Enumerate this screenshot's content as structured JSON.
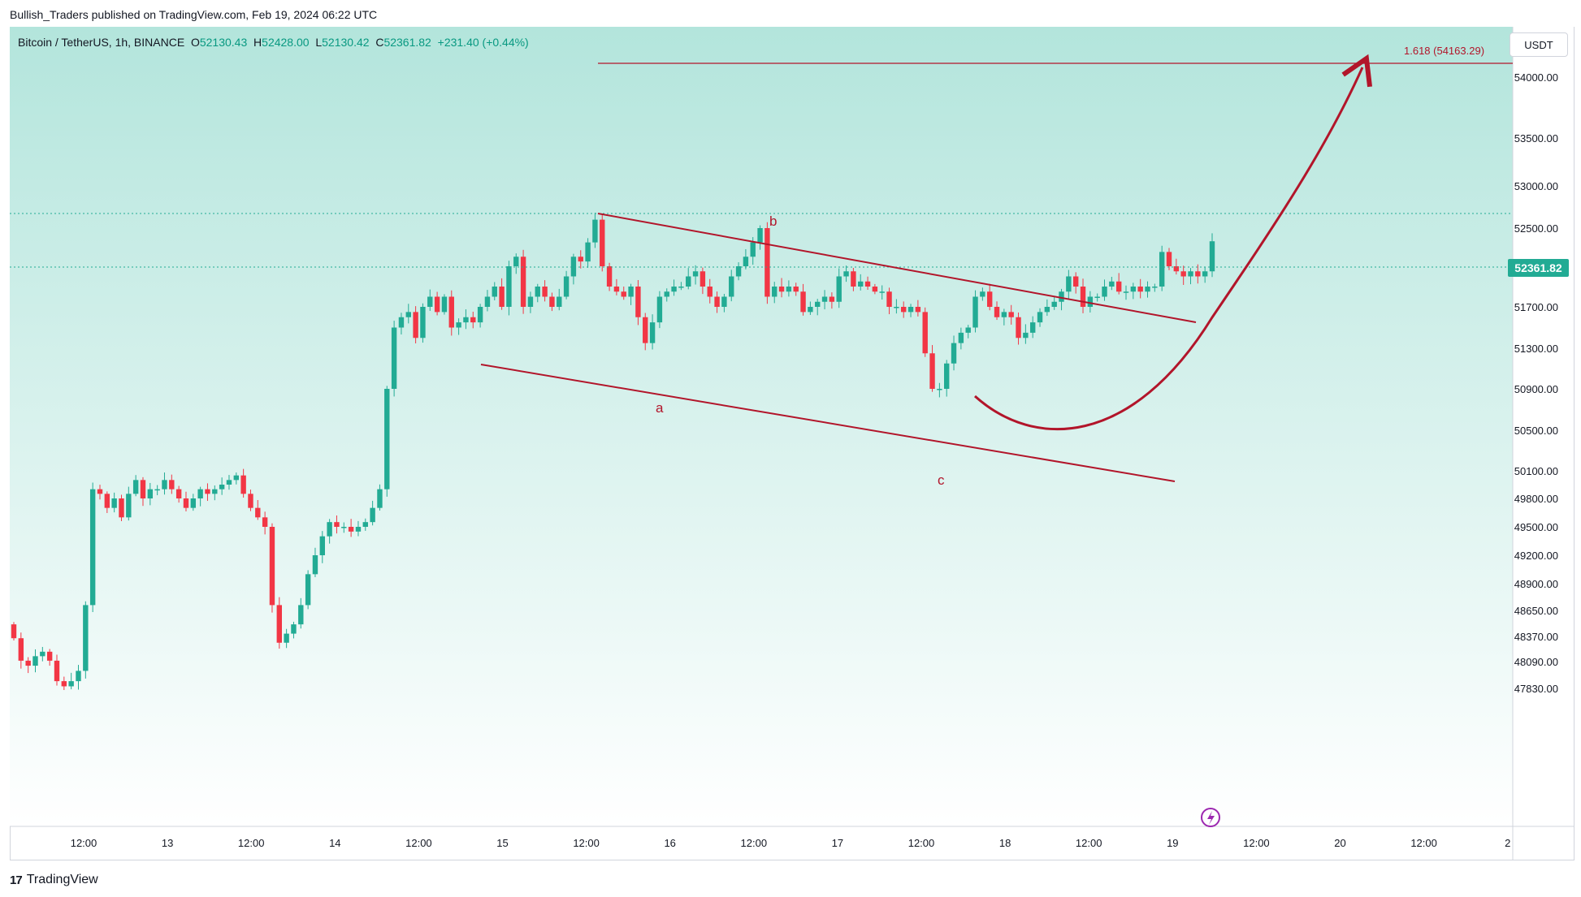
{
  "header": {
    "publisher_line": "Bullish_Traders published on TradingView.com, Feb 19, 2024 06:22 UTC"
  },
  "legend": {
    "symbol": "Bitcoin / TetherUS, 1h, BINANCE",
    "open_label": "O",
    "open": "52130.43",
    "high_label": "H",
    "high": "52428.00",
    "low_label": "L",
    "low": "52130.42",
    "close_label": "C",
    "close": "52361.82",
    "change": "+231.40 (+0.44%)"
  },
  "currency": "USDT",
  "last_price_tag": "52361.82",
  "fib_label": "1.618 (54163.29)",
  "footer": {
    "brand": "TradingView",
    "logo": "17"
  },
  "colors": {
    "up": "#22ab94",
    "down": "#f23645",
    "annotation": "#b2152a",
    "background_top": "#b3e5dc",
    "background_bottom": "#ffffff"
  },
  "chart_data": {
    "type": "candlestick",
    "symbol": "BTCUSDT",
    "interval": "1h",
    "x_ticks": [
      "12:00",
      "13",
      "12:00",
      "14",
      "12:00",
      "15",
      "12:00",
      "16",
      "12:00",
      "17",
      "12:00",
      "18",
      "12:00",
      "19",
      "12:00",
      "20",
      "12:00",
      "2"
    ],
    "y_ticks": [
      "54000.00",
      "53500.00",
      "53000.00",
      "52500.00",
      "52100.00",
      "51700.00",
      "51300.00",
      "50900.00",
      "50500.00",
      "50100.00",
      "49800.00",
      "49500.00",
      "49200.00",
      "48900.00",
      "48650.00",
      "48370.00",
      "48090.00",
      "47830.00"
    ],
    "y_tick_values": [
      54000,
      53500,
      53000,
      52500,
      52100,
      51700,
      51300,
      50900,
      50500,
      50100,
      49800,
      49500,
      49200,
      48900,
      48650,
      48370,
      48090,
      47830
    ],
    "wave_labels": [
      "a",
      "b",
      "c"
    ],
    "fib_level": 54163.29,
    "last_price": 52361.82,
    "candle_closes": [
      48350,
      48100,
      48050,
      48150,
      48200,
      48100,
      47900,
      47850,
      47900,
      48000,
      48700,
      49900,
      49850,
      49700,
      49800,
      49600,
      49850,
      50000,
      49800,
      49900,
      49900,
      50000,
      49900,
      49800,
      49700,
      49800,
      49900,
      49850,
      49900,
      49950,
      50000,
      50050,
      49850,
      49700,
      49600,
      49500,
      48700,
      48300,
      48400,
      48500,
      48700,
      49000,
      49200,
      49400,
      49550,
      49500,
      49500,
      49450,
      49500,
      49550,
      49700,
      49900,
      50900,
      51500,
      51600,
      51650,
      51400,
      51700,
      51800,
      51650,
      51800,
      51500,
      51550,
      51600,
      51550,
      51700,
      51800,
      51900,
      51700,
      52100,
      52200,
      51700,
      51800,
      51900,
      51800,
      51700,
      51800,
      52000,
      52200,
      52150,
      52350,
      52600,
      52100,
      51900,
      51850,
      51800,
      51900,
      51600,
      51350,
      51550,
      51800,
      51850,
      51900,
      51900,
      52000,
      52050,
      51900,
      51800,
      51700,
      51800,
      52000,
      52100,
      52200,
      52350,
      52500,
      51800,
      51900,
      51850,
      51900,
      51850,
      51650,
      51700,
      51750,
      51800,
      51750,
      52000,
      52050,
      51900,
      51950,
      51900,
      51850,
      51850,
      51700,
      51700,
      51650,
      51700,
      51650,
      51250,
      50900,
      50900,
      51150,
      51350,
      51450,
      51500,
      51800,
      51850,
      51700,
      51600,
      51650,
      51600,
      51400,
      51450,
      51550,
      51650,
      51700,
      51750,
      51850,
      52000,
      51900,
      51700,
      51800,
      51800,
      51900,
      51950,
      51850,
      51850,
      51900,
      51850,
      51900,
      51900,
      52250,
      52100,
      52050,
      52000,
      52050,
      52000,
      52050,
      52362
    ]
  }
}
